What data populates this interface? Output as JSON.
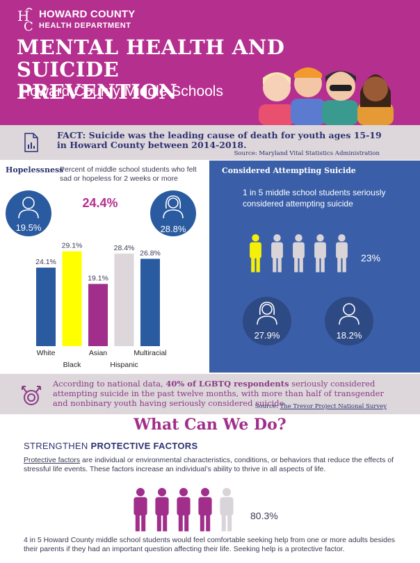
{
  "header": {
    "org_line1": "HOWARD COUNTY",
    "org_line2": "HEALTH DEPARTMENT",
    "title_line1": "MENTAL HEALTH AND SUICIDE",
    "title_line2": "PREVENTION",
    "subtitle": "Howard County Middle Schools",
    "accent_color": "#b52f8f"
  },
  "fact": {
    "text": "FACT:  Suicide was the leading cause of death for youth ages 15-19 in Howard County between 2014-2018.",
    "source": "Source: Maryland Vital Statistics Administration"
  },
  "hopelessness": {
    "title": "Hopelessness",
    "description": "Percent of middle school students who felt sad or hopeless for 2 weeks or more",
    "overall": "24.4%",
    "male_pct": "19.5%",
    "female_pct": "28.8%"
  },
  "chart_data": {
    "type": "bar",
    "categories": [
      "White",
      "Black",
      "Asian",
      "Hispanic",
      "Multiracial"
    ],
    "values": [
      24.1,
      29.1,
      19.1,
      28.4,
      26.8
    ],
    "value_labels": [
      "24.1%",
      "29.1%",
      "19.1%",
      "28.4%",
      "26.8%"
    ],
    "colors": [
      "#2a5aa0",
      "#ffff00",
      "#a02e8a",
      "#ddd6db",
      "#2a5aa0"
    ],
    "title": "",
    "xlabel": "",
    "ylabel": "",
    "ylim": [
      0,
      32
    ]
  },
  "considered": {
    "title": "Considered Attempting Suicide",
    "text": "1 in 5 middle school students seriously considered attempting suicide",
    "pct": "23%",
    "female_pct": "27.9%",
    "male_pct": "18.2%",
    "highlight_fraction": 0.2
  },
  "lgbtq": {
    "text_before": "According to national data, ",
    "text_bold": "40% of LGBTQ respondents",
    "text_after": " seriously considered attempting suicide in the past twelve months, with more than half of transgender and nonbinary youth having seriously considered suicide",
    "source_label": "Source: ",
    "source_name": "The Trevor Project National Survey"
  },
  "what_can_we_do": {
    "heading": "What Can We Do?",
    "strengthen_plain": "STRENGTHEN ",
    "strengthen_bold": "PROTECTIVE FACTORS",
    "pf_link": "Protective factors",
    "pf_rest": " are individual or environmental characteristics, conditions, or behaviors that reduce the effects of stressful life events. These factors increase an individual’s ability to thrive in all aspects of life.",
    "help_pct": "80.3%",
    "help_fraction": 0.8,
    "help_text": "4 in 5 Howard County middle school students would feel comfortable seeking help from one or more adults besides their parents if they had an important question affecting their life. Seeking help is a protective factor."
  }
}
